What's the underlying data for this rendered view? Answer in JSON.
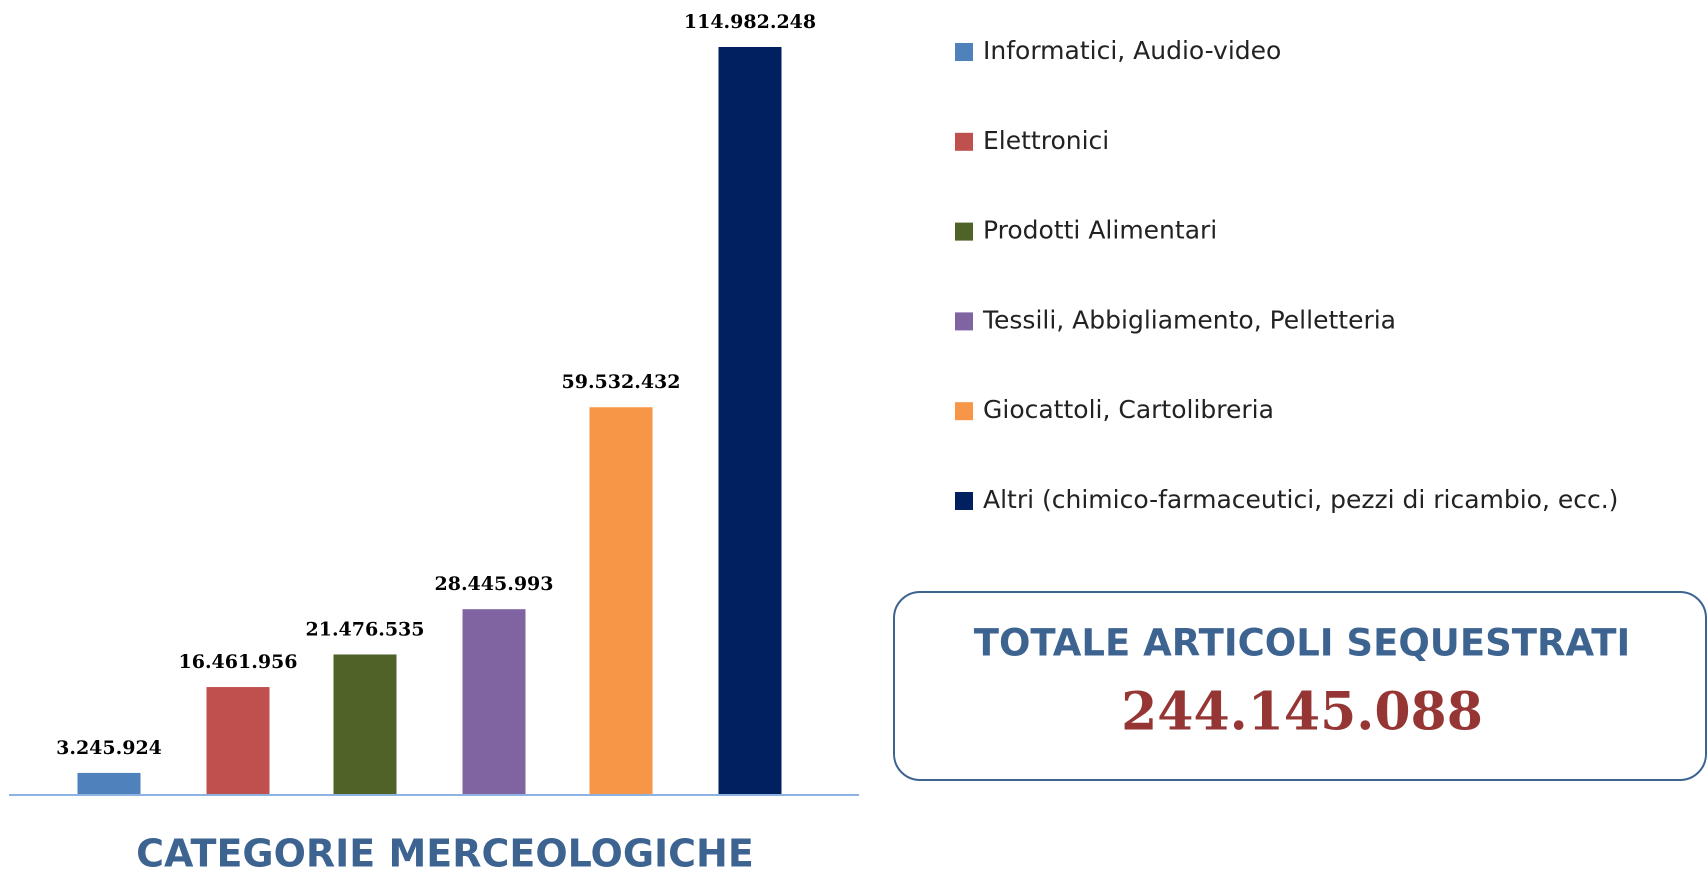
{
  "chart_data": {
    "type": "bar",
    "xlabel": "CATEGORIE MERCEOLOGICHE",
    "categories": [
      "Informatici, Audio-video",
      "Elettronici",
      "Prodotti Alimentari",
      "Tessili, Abbigliamento, Pelletteria",
      "Giocattoli, Cartolibreria",
      "Altri (chimico-farmaceutici, pezzi di ricambio, ecc.)"
    ],
    "values": [
      3245924,
      16461956,
      21476535,
      28445993,
      59532432,
      114982248
    ],
    "value_labels": [
      "3.245.924",
      "16.461.956",
      "21.476.535",
      "28.445.993",
      "59.532.432",
      "114.982.248"
    ],
    "colors": [
      "#4f81bd",
      "#c0504d",
      "#4f6228",
      "#8064a2",
      "#f79646",
      "#002060"
    ],
    "annotation": {
      "title": "TOTALE ARTICOLI SEQUESTRATI",
      "text": "244.145.088"
    }
  }
}
